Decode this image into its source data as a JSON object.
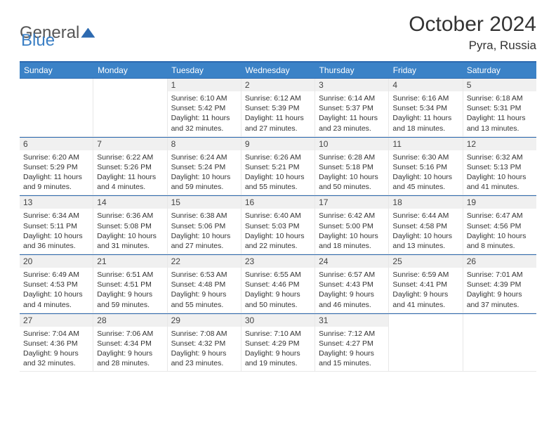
{
  "brand": {
    "text1": "General",
    "text2": "Blue"
  },
  "title": "October 2024",
  "location": "Pyra, Russia",
  "dayNames": [
    "Sunday",
    "Monday",
    "Tuesday",
    "Wednesday",
    "Thursday",
    "Friday",
    "Saturday"
  ],
  "colors": {
    "headerBar": "#3b82c7",
    "ruleLine": "#2d6ab0",
    "dayBg": "#f0f0f0"
  },
  "weeks": [
    [
      null,
      null,
      {
        "n": "1",
        "sr": "6:10 AM",
        "ss": "5:42 PM",
        "dl": "11 hours and 32 minutes."
      },
      {
        "n": "2",
        "sr": "6:12 AM",
        "ss": "5:39 PM",
        "dl": "11 hours and 27 minutes."
      },
      {
        "n": "3",
        "sr": "6:14 AM",
        "ss": "5:37 PM",
        "dl": "11 hours and 23 minutes."
      },
      {
        "n": "4",
        "sr": "6:16 AM",
        "ss": "5:34 PM",
        "dl": "11 hours and 18 minutes."
      },
      {
        "n": "5",
        "sr": "6:18 AM",
        "ss": "5:31 PM",
        "dl": "11 hours and 13 minutes."
      }
    ],
    [
      {
        "n": "6",
        "sr": "6:20 AM",
        "ss": "5:29 PM",
        "dl": "11 hours and 9 minutes."
      },
      {
        "n": "7",
        "sr": "6:22 AM",
        "ss": "5:26 PM",
        "dl": "11 hours and 4 minutes."
      },
      {
        "n": "8",
        "sr": "6:24 AM",
        "ss": "5:24 PM",
        "dl": "10 hours and 59 minutes."
      },
      {
        "n": "9",
        "sr": "6:26 AM",
        "ss": "5:21 PM",
        "dl": "10 hours and 55 minutes."
      },
      {
        "n": "10",
        "sr": "6:28 AM",
        "ss": "5:18 PM",
        "dl": "10 hours and 50 minutes."
      },
      {
        "n": "11",
        "sr": "6:30 AM",
        "ss": "5:16 PM",
        "dl": "10 hours and 45 minutes."
      },
      {
        "n": "12",
        "sr": "6:32 AM",
        "ss": "5:13 PM",
        "dl": "10 hours and 41 minutes."
      }
    ],
    [
      {
        "n": "13",
        "sr": "6:34 AM",
        "ss": "5:11 PM",
        "dl": "10 hours and 36 minutes."
      },
      {
        "n": "14",
        "sr": "6:36 AM",
        "ss": "5:08 PM",
        "dl": "10 hours and 31 minutes."
      },
      {
        "n": "15",
        "sr": "6:38 AM",
        "ss": "5:06 PM",
        "dl": "10 hours and 27 minutes."
      },
      {
        "n": "16",
        "sr": "6:40 AM",
        "ss": "5:03 PM",
        "dl": "10 hours and 22 minutes."
      },
      {
        "n": "17",
        "sr": "6:42 AM",
        "ss": "5:00 PM",
        "dl": "10 hours and 18 minutes."
      },
      {
        "n": "18",
        "sr": "6:44 AM",
        "ss": "4:58 PM",
        "dl": "10 hours and 13 minutes."
      },
      {
        "n": "19",
        "sr": "6:47 AM",
        "ss": "4:56 PM",
        "dl": "10 hours and 8 minutes."
      }
    ],
    [
      {
        "n": "20",
        "sr": "6:49 AM",
        "ss": "4:53 PM",
        "dl": "10 hours and 4 minutes."
      },
      {
        "n": "21",
        "sr": "6:51 AM",
        "ss": "4:51 PM",
        "dl": "9 hours and 59 minutes."
      },
      {
        "n": "22",
        "sr": "6:53 AM",
        "ss": "4:48 PM",
        "dl": "9 hours and 55 minutes."
      },
      {
        "n": "23",
        "sr": "6:55 AM",
        "ss": "4:46 PM",
        "dl": "9 hours and 50 minutes."
      },
      {
        "n": "24",
        "sr": "6:57 AM",
        "ss": "4:43 PM",
        "dl": "9 hours and 46 minutes."
      },
      {
        "n": "25",
        "sr": "6:59 AM",
        "ss": "4:41 PM",
        "dl": "9 hours and 41 minutes."
      },
      {
        "n": "26",
        "sr": "7:01 AM",
        "ss": "4:39 PM",
        "dl": "9 hours and 37 minutes."
      }
    ],
    [
      {
        "n": "27",
        "sr": "7:04 AM",
        "ss": "4:36 PM",
        "dl": "9 hours and 32 minutes."
      },
      {
        "n": "28",
        "sr": "7:06 AM",
        "ss": "4:34 PM",
        "dl": "9 hours and 28 minutes."
      },
      {
        "n": "29",
        "sr": "7:08 AM",
        "ss": "4:32 PM",
        "dl": "9 hours and 23 minutes."
      },
      {
        "n": "30",
        "sr": "7:10 AM",
        "ss": "4:29 PM",
        "dl": "9 hours and 19 minutes."
      },
      {
        "n": "31",
        "sr": "7:12 AM",
        "ss": "4:27 PM",
        "dl": "9 hours and 15 minutes."
      },
      null,
      null
    ]
  ],
  "labels": {
    "sunrise": "Sunrise:",
    "sunset": "Sunset:",
    "daylight": "Daylight:"
  }
}
